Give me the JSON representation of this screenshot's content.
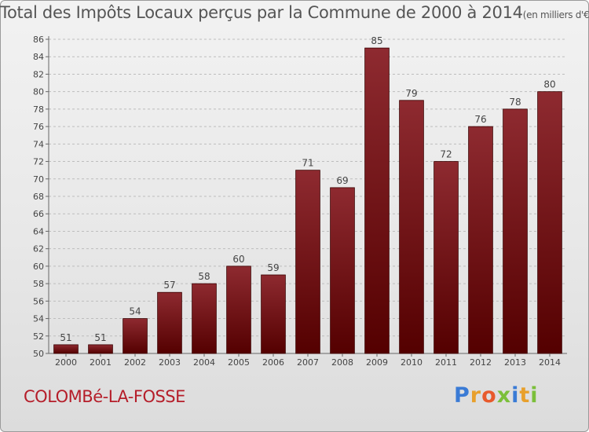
{
  "header": {
    "title": "Total des Impôts Locaux perçus par la Commune de 2000 à 2014",
    "unit": "(en milliers d'€)"
  },
  "footer": {
    "commune": "COLOMBé-LA-FOSSE",
    "brand_letters": [
      "P",
      "r",
      "o",
      "x",
      "i",
      "t",
      "i"
    ],
    "brand_colors": [
      "#3a7bd5",
      "#e8a02c",
      "#e85a2c",
      "#7bbf3a",
      "#3a7bd5",
      "#e8a02c",
      "#7bbf3a"
    ]
  },
  "chart_data": {
    "type": "bar",
    "categories": [
      "2000",
      "2001",
      "2002",
      "2003",
      "2004",
      "2005",
      "2006",
      "2007",
      "2008",
      "2009",
      "2010",
      "2011",
      "2012",
      "2013",
      "2014"
    ],
    "values": [
      51,
      51,
      54,
      57,
      58,
      60,
      59,
      71,
      69,
      85,
      79,
      72,
      76,
      78,
      80
    ],
    "data_labels": [
      "51",
      "51",
      "54",
      "57",
      "58",
      "60",
      "59",
      "71",
      "69",
      "85",
      "79",
      "72",
      "76",
      "78",
      "80"
    ],
    "ylim": [
      50,
      86
    ],
    "yticks": [
      50,
      52,
      54,
      56,
      58,
      60,
      62,
      64,
      66,
      68,
      70,
      72,
      74,
      76,
      78,
      80,
      82,
      84,
      86
    ],
    "ytick_labels": [
      "50",
      "52",
      "54",
      "56",
      "58",
      "60",
      "62",
      "64",
      "66",
      "68",
      "70",
      "72",
      "74",
      "76",
      "78",
      "80",
      "82",
      "84",
      "86"
    ],
    "xlabel": "",
    "ylabel": "",
    "grid": true,
    "bar_color": "#8b1a1a"
  }
}
